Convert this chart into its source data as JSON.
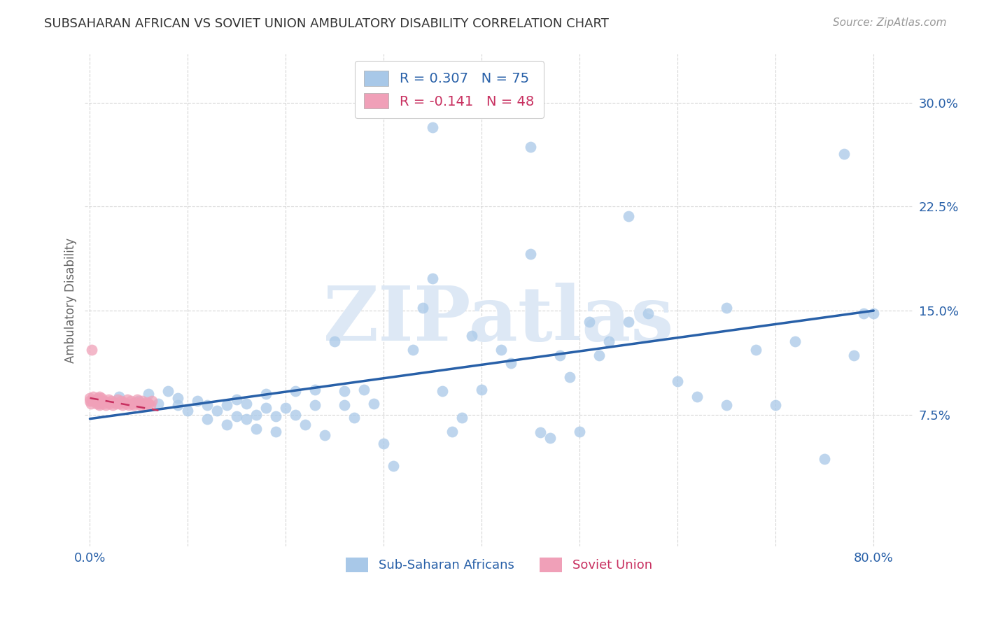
{
  "title": "SUBSAHARAN AFRICAN VS SOVIET UNION AMBULATORY DISABILITY CORRELATION CHART",
  "source": "Source: ZipAtlas.com",
  "ylabel": "Ambulatory Disability",
  "blue_color": "#A8C8E8",
  "blue_line_color": "#2860A8",
  "pink_color": "#F0A0B8",
  "pink_line_color": "#C83060",
  "legend_blue_r": "R = 0.307",
  "legend_blue_n": "N = 75",
  "legend_pink_r": "R = -0.141",
  "legend_pink_n": "N = 48",
  "watermark_text": "ZIPatlas",
  "xlim": [
    -0.005,
    0.84
  ],
  "ylim": [
    -0.02,
    0.335
  ],
  "x_tick_positions": [
    0.0,
    0.1,
    0.2,
    0.3,
    0.4,
    0.5,
    0.6,
    0.7,
    0.8
  ],
  "x_tick_labels": [
    "0.0%",
    "",
    "",
    "",
    "",
    "",
    "",
    "",
    "80.0%"
  ],
  "y_tick_positions": [
    0.075,
    0.15,
    0.225,
    0.3
  ],
  "y_tick_labels": [
    "7.5%",
    "15.0%",
    "22.5%",
    "30.0%"
  ],
  "blue_trend_x": [
    0.0,
    0.8
  ],
  "blue_trend_y": [
    0.072,
    0.15
  ],
  "pink_trend_x": [
    0.0,
    0.07
  ],
  "pink_trend_y": [
    0.087,
    0.078
  ],
  "blue_scatter_x": [
    0.03,
    0.05,
    0.06,
    0.07,
    0.08,
    0.09,
    0.09,
    0.1,
    0.11,
    0.12,
    0.12,
    0.13,
    0.14,
    0.14,
    0.15,
    0.15,
    0.16,
    0.16,
    0.17,
    0.17,
    0.18,
    0.18,
    0.19,
    0.19,
    0.2,
    0.21,
    0.21,
    0.22,
    0.23,
    0.23,
    0.24,
    0.25,
    0.26,
    0.26,
    0.27,
    0.28,
    0.29,
    0.3,
    0.31,
    0.33,
    0.34,
    0.35,
    0.36,
    0.37,
    0.38,
    0.39,
    0.4,
    0.42,
    0.43,
    0.45,
    0.46,
    0.47,
    0.48,
    0.49,
    0.5,
    0.51,
    0.52,
    0.53,
    0.55,
    0.57,
    0.6,
    0.62,
    0.65,
    0.68,
    0.7,
    0.72,
    0.75,
    0.77,
    0.78,
    0.79,
    0.8,
    0.35,
    0.45,
    0.55,
    0.65
  ],
  "blue_scatter_y": [
    0.088,
    0.085,
    0.09,
    0.083,
    0.092,
    0.082,
    0.087,
    0.078,
    0.085,
    0.072,
    0.082,
    0.078,
    0.068,
    0.082,
    0.074,
    0.086,
    0.072,
    0.083,
    0.075,
    0.065,
    0.08,
    0.09,
    0.074,
    0.063,
    0.08,
    0.075,
    0.092,
    0.068,
    0.093,
    0.082,
    0.06,
    0.128,
    0.092,
    0.082,
    0.073,
    0.093,
    0.083,
    0.054,
    0.038,
    0.122,
    0.152,
    0.173,
    0.092,
    0.063,
    0.073,
    0.132,
    0.093,
    0.122,
    0.112,
    0.191,
    0.062,
    0.058,
    0.118,
    0.102,
    0.063,
    0.142,
    0.118,
    0.128,
    0.142,
    0.148,
    0.099,
    0.088,
    0.082,
    0.122,
    0.082,
    0.128,
    0.043,
    0.263,
    0.118,
    0.148,
    0.148,
    0.282,
    0.268,
    0.218,
    0.152
  ],
  "pink_scatter_x": [
    0.0,
    0.0,
    0.001,
    0.002,
    0.003,
    0.005,
    0.007,
    0.008,
    0.009,
    0.01,
    0.01,
    0.01,
    0.01,
    0.011,
    0.012,
    0.013,
    0.015,
    0.016,
    0.018,
    0.019,
    0.02,
    0.022,
    0.023,
    0.025,
    0.027,
    0.028,
    0.03,
    0.032,
    0.033,
    0.035,
    0.037,
    0.038,
    0.04,
    0.042,
    0.043,
    0.045,
    0.047,
    0.048,
    0.05,
    0.052,
    0.053,
    0.055,
    0.057,
    0.058,
    0.06,
    0.062,
    0.063,
    0.002
  ],
  "pink_scatter_y": [
    0.085,
    0.087,
    0.083,
    0.085,
    0.088,
    0.085,
    0.083,
    0.087,
    0.085,
    0.082,
    0.085,
    0.088,
    0.083,
    0.085,
    0.087,
    0.083,
    0.085,
    0.082,
    0.084,
    0.086,
    0.083,
    0.085,
    0.082,
    0.084,
    0.083,
    0.086,
    0.083,
    0.085,
    0.082,
    0.084,
    0.083,
    0.086,
    0.082,
    0.085,
    0.083,
    0.082,
    0.084,
    0.086,
    0.083,
    0.082,
    0.085,
    0.083,
    0.082,
    0.084,
    0.083,
    0.082,
    0.085,
    0.122
  ]
}
